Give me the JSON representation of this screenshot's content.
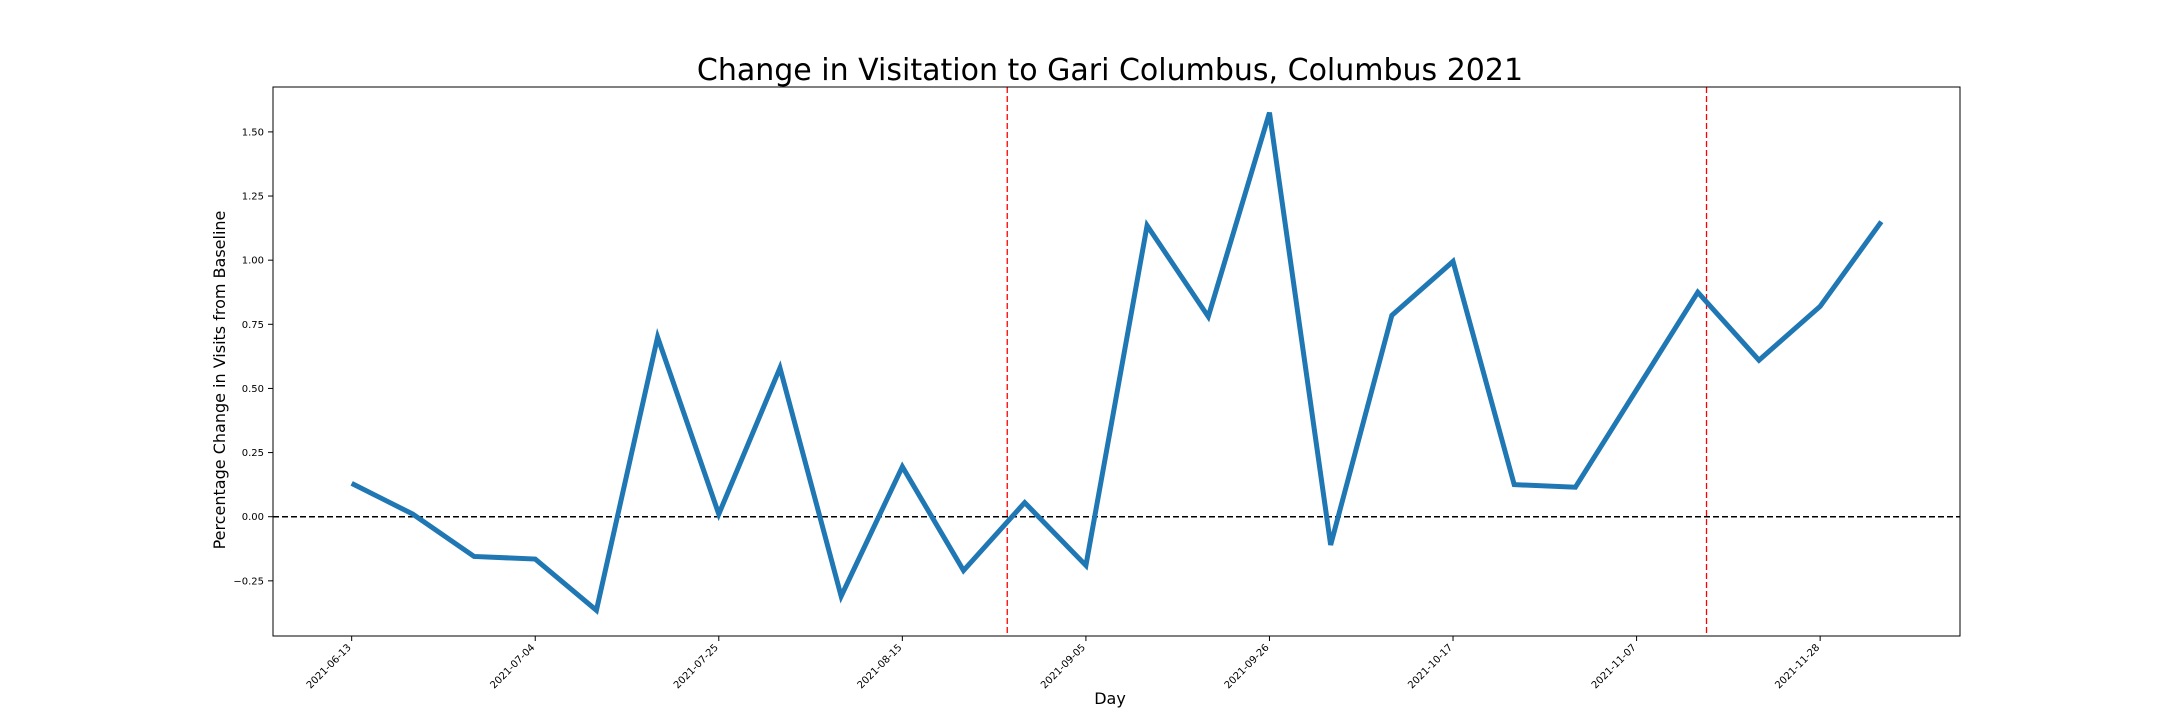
{
  "chart_data": {
    "type": "line",
    "title": "Change in Visitation to Gari Columbus, Columbus 2021",
    "xlabel": "Day",
    "ylabel": "Percentage Change in Visits from Baseline",
    "x": [
      "2021-06-13",
      "2021-06-20",
      "2021-06-27",
      "2021-07-04",
      "2021-07-11",
      "2021-07-18",
      "2021-07-25",
      "2021-08-01",
      "2021-08-08",
      "2021-08-15",
      "2021-08-22",
      "2021-08-29",
      "2021-09-05",
      "2021-09-12",
      "2021-09-19",
      "2021-09-26",
      "2021-10-03",
      "2021-10-10",
      "2021-10-17",
      "2021-10-24",
      "2021-10-31",
      "2021-11-07",
      "2021-11-14",
      "2021-11-21",
      "2021-11-28",
      "2021-12-05"
    ],
    "series": [
      {
        "values": [
          0.13,
          0.01,
          -0.155,
          -0.165,
          -0.365,
          0.7,
          0.01,
          0.58,
          -0.31,
          0.195,
          -0.21,
          0.055,
          -0.19,
          1.135,
          0.78,
          1.575,
          -0.11,
          0.785,
          0.995,
          0.125,
          0.115,
          0.495,
          0.875,
          0.61,
          0.82,
          1.15
        ],
        "color": "#1f77b4"
      }
    ],
    "x_ticks": [
      "2021-06-13",
      "2021-07-04",
      "2021-07-25",
      "2021-08-15",
      "2021-09-05",
      "2021-09-26",
      "2021-10-17",
      "2021-11-07",
      "2021-11-28"
    ],
    "y_ticks": [
      -0.25,
      0.0,
      0.25,
      0.5,
      0.75,
      1.0,
      1.25,
      1.5
    ],
    "y_tick_labels": [
      "−0.25",
      "0.00",
      "0.25",
      "0.50",
      "0.75",
      "1.00",
      "1.25",
      "1.50"
    ],
    "ylim": [
      -0.465,
      1.675
    ],
    "xlim": [
      "2021-06-04",
      "2021-12-14"
    ],
    "baseline": {
      "y": 0,
      "style": "dashed",
      "color": "#000000"
    },
    "vertical_markers": [
      {
        "x": "2021-08-27",
        "style": "dashed",
        "color": "#ff0000"
      },
      {
        "x": "2021-11-15",
        "style": "dashed",
        "color": "#ff0000"
      }
    ],
    "grid": false,
    "legend": "none"
  }
}
